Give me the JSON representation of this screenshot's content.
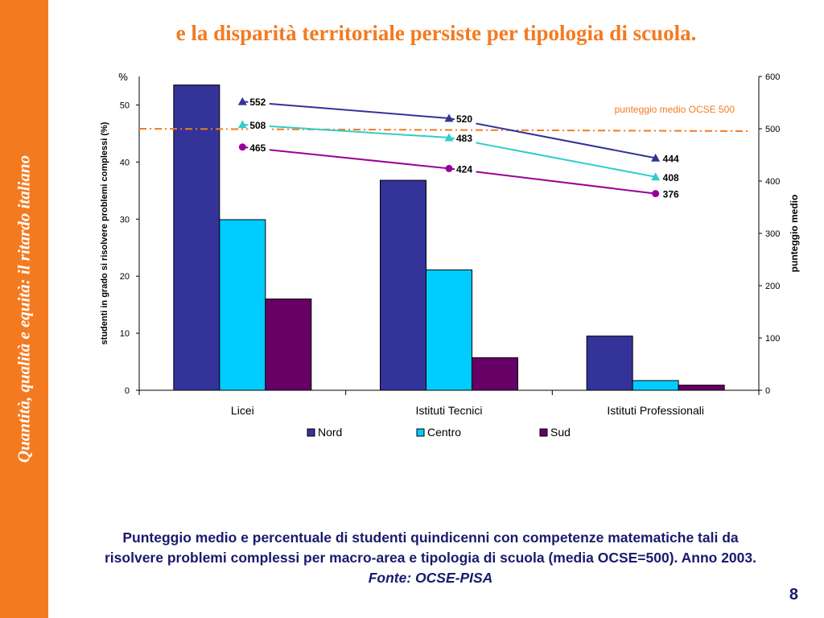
{
  "sidebar": {
    "text": "Quantità, qualità e equità: il ritardo italiano"
  },
  "title": "e la disparità territoriale persiste per tipologia di scuola.",
  "caption": {
    "text": "Punteggio medio e percentuale di studenti quindicenni con competenze matematiche tali da risolvere problemi complessi per macro-area e tipologia di scuola (media OCSE=500). Anno 2003. ",
    "source": "Fonte: OCSE-PISA"
  },
  "page_number": "8",
  "colors": {
    "accent": "#f47a20",
    "nord": "#333399",
    "centro": "#00ccff",
    "sud": "#660066",
    "caption": "#1a1a6e"
  },
  "chart_data": {
    "type": "bar",
    "categories": [
      "Licei",
      "Istituti Tecnici",
      "Istituti Professionali"
    ],
    "series": [
      {
        "name": "Nord",
        "values": [
          53.5,
          36.8,
          9.5
        ],
        "color": "#333399"
      },
      {
        "name": "Centro",
        "values": [
          29.9,
          21.1,
          1.7
        ],
        "color": "#00ccff"
      },
      {
        "name": "Sud",
        "values": [
          16.0,
          5.7,
          0.9
        ],
        "color": "#660066"
      }
    ],
    "lines": [
      {
        "name": "Nord",
        "values": [
          552,
          520,
          444
        ],
        "color": "#333399",
        "marker": "triangle"
      },
      {
        "name": "Centro",
        "values": [
          508,
          483,
          408
        ],
        "color": "#33cccc",
        "marker": "triangle"
      },
      {
        "name": "Sud",
        "values": [
          465,
          424,
          376
        ],
        "color": "#990099",
        "marker": "circle"
      }
    ],
    "reference_line": {
      "value": 500,
      "label": "punteggio medio OCSE 500"
    },
    "ylabel": "studenti in grado si risolvere problemi complessi (%)",
    "y_unit": "%",
    "ylim": [
      0,
      55
    ],
    "yticks": [
      0,
      10,
      20,
      30,
      40,
      50
    ],
    "y2label": "punteggio medio",
    "y2lim": [
      0,
      600
    ],
    "y2ticks": [
      0,
      100,
      200,
      300,
      400,
      500,
      600
    ],
    "legend": [
      "Nord",
      "Centro",
      "Sud"
    ],
    "legend_position": "bottom",
    "grid": false
  }
}
